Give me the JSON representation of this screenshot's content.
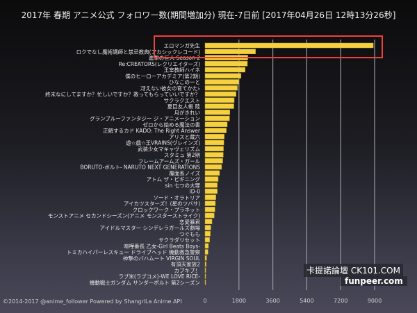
{
  "chart_data": {
    "type": "bar",
    "orientation": "horizontal",
    "title": "2017年 春期 アニメ公式 フォロワー数(期間増加分) 現在-7日前 [2017年04月26日 12時13分26秒]",
    "xlabel": "",
    "ylabel": "",
    "xlim": [
      0,
      9000
    ],
    "xticks": [
      0,
      1800,
      3600,
      5400,
      7200,
      9000
    ],
    "grid": true,
    "bar_color": "#f5d142",
    "categories": [
      "エロマンガ先生",
      "ロクでなし魔術講師と禁忌教典(アカシックレコード)",
      "進撃の巨人 Season 2",
      "Re:CREATORS(レクリエイターズ)",
      "王室教師ハイネ",
      "僕のヒーローアカデミア(第2期)",
      "ひなこのーと",
      "冴えない彼女の育てかた♭",
      "終末なにしてますか？忙しいですか？救ってもらっていいですか？",
      "サクラクエスト",
      "夏目友人帳 陸",
      "月がきれい",
      "グランブルーファンタジー ジ・アニメーション",
      "ゼロから始める魔法の書",
      "正解するカド KADO: The Right Answer",
      "アリスと蔵六",
      "遊☆戯☆王VRAINS(ヴレインズ)",
      "武装少女マキャヴェリズム",
      "スタミュ 第2期",
      "フレームアームズ・ガール",
      "BORUTO-ボルト- NARUTO NEXT GENERATIONS",
      "覆面系ノイズ",
      "アトム ザ・ビギニング",
      "sin 七つの大罪",
      "ID-0",
      "ソード・オラトリア",
      "アイカツスターズ！(星のツバサ)",
      "クロックワーク・プラネット",
      "モンストアニメ セカンドシーズン(アニメ モンスターストライク)",
      "恋愛暴君",
      "アイドルマスター シンデレラガールズ劇場",
      "つぐもも",
      "サクラダリセット",
      "喧嘩番長 乙女-Girl Beats Boys-",
      "トミカハイパーレスキュー ドライブヘッド 機動救急警察",
      "神撃のバハムート VIRGIN SOUL",
      "有頂天家族2",
      "カブキブ！",
      "ラブ米(ラブコメ)-WE LOVE RICE-",
      "機動戦士ガンダム サンダーボルト 第2シーズン"
    ],
    "values": [
      8930,
      2680,
      2270,
      2250,
      2130,
      1910,
      1800,
      1720,
      1650,
      1550,
      1530,
      1320,
      1300,
      1180,
      1130,
      1020,
      1000,
      980,
      970,
      940,
      880,
      770,
      700,
      650,
      650,
      575,
      550,
      525,
      490,
      370,
      305,
      280,
      245,
      180,
      160,
      85,
      60,
      40,
      35,
      30
    ],
    "highlighted_category": "エロマンガ先生",
    "highlight_color": "#f0403c"
  },
  "footer": "©2014-2017 @anime_follower Powered by ShangriLa Anime API",
  "watermarks": {
    "line1": "卡提諾論壇 CK101.COM",
    "line2": "funpeer.com"
  }
}
